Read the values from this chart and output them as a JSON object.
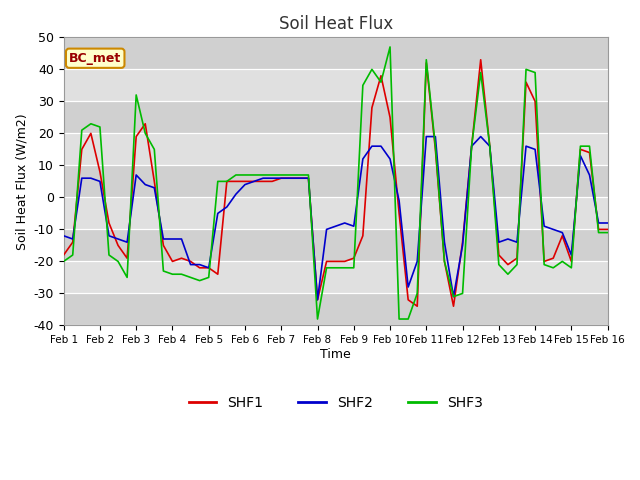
{
  "title": "Soil Heat Flux",
  "xlabel": "Time",
  "ylabel": "Soil Heat Flux (W/m2)",
  "ylim": [
    -40,
    50
  ],
  "xlim": [
    0,
    15
  ],
  "fig_bg": "#ffffff",
  "plot_bg": "#e8e8e8",
  "annotation": "BC_met",
  "annotation_bg": "#ffffcc",
  "annotation_border": "#cc8800",
  "annotation_text_color": "#990000",
  "xtick_labels": [
    "Feb 1",
    "Feb 2",
    "Feb 3",
    "Feb 4",
    "Feb 5",
    "Feb 6",
    "Feb 7",
    "Feb 8",
    "Feb 9",
    "Feb 10",
    "Feb 11",
    "Feb 12",
    "Feb 13",
    "Feb 14",
    "Feb 15",
    "Feb 16"
  ],
  "ytick_values": [
    -40,
    -30,
    -20,
    -10,
    0,
    10,
    20,
    30,
    40,
    50
  ],
  "shf1_color": "#dd0000",
  "shf2_color": "#0000cc",
  "shf3_color": "#00bb00",
  "shf1_x": [
    0.0,
    0.25,
    0.5,
    0.75,
    1.0,
    1.25,
    1.5,
    1.75,
    2.0,
    2.25,
    2.5,
    2.75,
    3.0,
    3.25,
    3.5,
    3.75,
    4.0,
    4.25,
    4.5,
    4.75,
    5.0,
    5.25,
    5.5,
    5.75,
    6.0,
    6.25,
    6.5,
    6.75,
    7.0,
    7.25,
    7.5,
    7.75,
    8.0,
    8.25,
    8.5,
    8.75,
    9.0,
    9.25,
    9.5,
    9.75,
    10.0,
    10.25,
    10.5,
    10.75,
    11.0,
    11.25,
    11.5,
    11.75,
    12.0,
    12.25,
    12.5,
    12.75,
    13.0,
    13.25,
    13.5,
    13.75,
    14.0,
    14.25,
    14.5,
    14.75,
    15.0
  ],
  "shf1_y": [
    -18,
    -14,
    15,
    20,
    8,
    -8,
    -15,
    -19,
    19,
    23,
    5,
    -15,
    -20,
    -19,
    -20,
    -22,
    -22,
    -24,
    5,
    5,
    5,
    5,
    5,
    5,
    6,
    6,
    6,
    6,
    -32,
    -20,
    -20,
    -20,
    -19,
    -12,
    28,
    38,
    25,
    -5,
    -32,
    -34,
    42,
    15,
    -20,
    -34,
    -14,
    16,
    43,
    16,
    -18,
    -21,
    -19,
    36,
    30,
    -20,
    -19,
    -12,
    -20,
    15,
    14,
    -10,
    -10
  ],
  "shf2_x": [
    0.0,
    0.25,
    0.5,
    0.75,
    1.0,
    1.25,
    1.5,
    1.75,
    2.0,
    2.25,
    2.5,
    2.75,
    3.0,
    3.25,
    3.5,
    3.75,
    4.0,
    4.25,
    4.5,
    4.75,
    5.0,
    5.25,
    5.5,
    5.75,
    6.0,
    6.25,
    6.5,
    6.75,
    7.0,
    7.25,
    7.5,
    7.75,
    8.0,
    8.25,
    8.5,
    8.75,
    9.0,
    9.25,
    9.5,
    9.75,
    10.0,
    10.25,
    10.5,
    10.75,
    11.0,
    11.25,
    11.5,
    11.75,
    12.0,
    12.25,
    12.5,
    12.75,
    13.0,
    13.25,
    13.5,
    13.75,
    14.0,
    14.25,
    14.5,
    14.75,
    15.0
  ],
  "shf2_y": [
    -12,
    -13,
    6,
    6,
    5,
    -12,
    -13,
    -14,
    7,
    4,
    3,
    -13,
    -13,
    -13,
    -21,
    -21,
    -22,
    -5,
    -3,
    1,
    4,
    5,
    6,
    6,
    6,
    6,
    6,
    6,
    -32,
    -10,
    -9,
    -8,
    -9,
    12,
    16,
    16,
    12,
    -1,
    -28,
    -20,
    19,
    19,
    -14,
    -31,
    -15,
    16,
    19,
    16,
    -14,
    -13,
    -14,
    16,
    15,
    -9,
    -10,
    -11,
    -18,
    13,
    7,
    -8,
    -8
  ],
  "shf3_x": [
    0.0,
    0.25,
    0.5,
    0.75,
    1.0,
    1.25,
    1.5,
    1.75,
    2.0,
    2.25,
    2.5,
    2.75,
    3.0,
    3.25,
    3.5,
    3.75,
    4.0,
    4.25,
    4.5,
    4.75,
    5.0,
    5.25,
    5.5,
    5.75,
    6.0,
    6.25,
    6.5,
    6.75,
    7.0,
    7.25,
    7.5,
    7.75,
    8.0,
    8.25,
    8.5,
    8.75,
    9.0,
    9.25,
    9.5,
    9.75,
    10.0,
    10.25,
    10.5,
    10.75,
    11.0,
    11.25,
    11.5,
    11.75,
    12.0,
    12.25,
    12.5,
    12.75,
    13.0,
    13.25,
    13.5,
    13.75,
    14.0,
    14.25,
    14.5,
    14.75,
    15.0
  ],
  "shf3_y": [
    -20,
    -18,
    21,
    23,
    22,
    -18,
    -20,
    -25,
    32,
    20,
    15,
    -23,
    -24,
    -24,
    -25,
    -26,
    -25,
    5,
    5,
    7,
    7,
    7,
    7,
    7,
    7,
    7,
    7,
    7,
    -38,
    -22,
    -22,
    -22,
    -22,
    35,
    40,
    36,
    47,
    -38,
    -38,
    -30,
    43,
    16,
    -20,
    -31,
    -30,
    16,
    39,
    16,
    -21,
    -24,
    -21,
    40,
    39,
    -21,
    -22,
    -20,
    -22,
    16,
    16,
    -11,
    -11
  ]
}
